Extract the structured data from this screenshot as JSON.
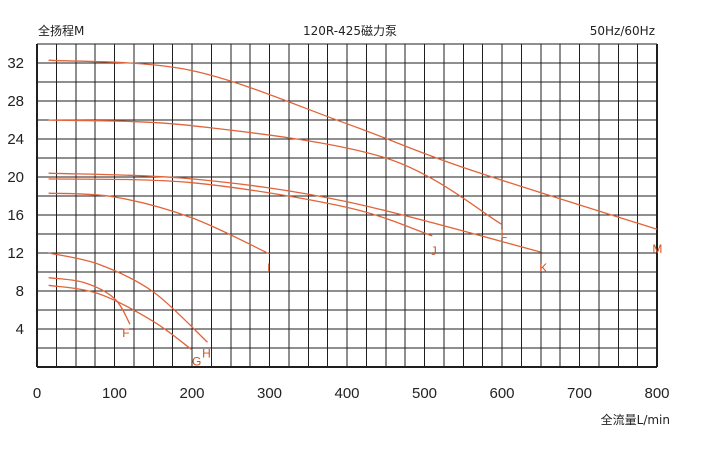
{
  "chart_data": {
    "type": "line",
    "title": "120R-425磁力泵",
    "frequency_label": "50Hz/60Hz",
    "ylabel": "全扬程M",
    "xlabel": "全流量L/min",
    "xlim": [
      0,
      800
    ],
    "ylim": [
      0,
      34
    ],
    "x_ticks": [
      "0",
      "100",
      "200",
      "300",
      "400",
      "500",
      "600",
      "700",
      "800"
    ],
    "x_tick_values": [
      0,
      100,
      200,
      300,
      400,
      500,
      600,
      700,
      800
    ],
    "y_ticks": [
      "4",
      "8",
      "12",
      "16",
      "20",
      "24",
      "28",
      "32"
    ],
    "y_tick_values": [
      4,
      8,
      12,
      16,
      20,
      24,
      28,
      32
    ],
    "grid": true,
    "curve_color": "#e2643a",
    "label_color": "#d4501f",
    "series": [
      {
        "label": "F",
        "x": [
          15,
          60,
          100,
          120
        ],
        "y": [
          9.4,
          8.9,
          7.2,
          4.5
        ],
        "label_at": [
          110,
          3.6
        ]
      },
      {
        "label": "G",
        "x": [
          15,
          80,
          150,
          200
        ],
        "y": [
          8.6,
          7.7,
          4.8,
          1.8
        ],
        "label_at": [
          200,
          0.6
        ]
      },
      {
        "label": "H",
        "x": [
          15,
          80,
          150,
          220
        ],
        "y": [
          12.0,
          10.8,
          7.9,
          2.6
        ],
        "label_at": [
          213,
          1.4
        ]
      },
      {
        "label": "I",
        "x": [
          15,
          100,
          200,
          300
        ],
        "y": [
          18.3,
          17.9,
          15.7,
          11.9
        ],
        "label_at": [
          297,
          10.4
        ]
      },
      {
        "label": "J",
        "x": [
          15,
          200,
          400,
          510
        ],
        "y": [
          19.8,
          19.4,
          16.8,
          13.8
        ],
        "label_at": [
          508,
          12.2
        ]
      },
      {
        "label": "K",
        "x": [
          15,
          200,
          400,
          650
        ],
        "y": [
          20.4,
          19.8,
          17.4,
          12.1
        ],
        "label_at": [
          648,
          10.4
        ]
      },
      {
        "label": "L",
        "x": [
          15,
          200,
          450,
          600
        ],
        "y": [
          26.0,
          25.4,
          22.0,
          15.0
        ],
        "label_at": [
          598,
          14.0
        ]
      },
      {
        "label": "M",
        "x": [
          15,
          200,
          400,
          550,
          800
        ],
        "y": [
          32.3,
          31.2,
          25.6,
          21.0,
          14.5
        ],
        "label_at": [
          794,
          12.4
        ]
      }
    ]
  }
}
